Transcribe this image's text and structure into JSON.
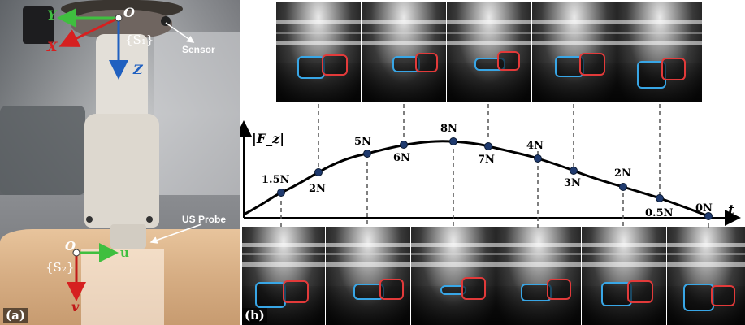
{
  "panel_a": {
    "tag": "(a)",
    "frame1": {
      "origin": "O",
      "name": "{S₁}",
      "x": "X",
      "y": "Y",
      "z": "Z"
    },
    "frame2": {
      "origin": "O",
      "name": "{S₂}",
      "u": "u",
      "v": "v"
    },
    "sensor_label": "Sensor",
    "probe_label": "US Probe"
  },
  "panel_b": {
    "tag": "(b)",
    "y_axis_label": "|F_z|",
    "x_axis_label": "t",
    "colors": {
      "artery_outline": "#e23a3a",
      "vein_outline": "#38a6e6",
      "curve": "#000000",
      "points": "#1f3a6e"
    },
    "force_points": [
      "1.5N",
      "2N",
      "5N",
      "6N",
      "8N",
      "7N",
      "4N",
      "3N",
      "2N",
      "0.5N",
      "0N"
    ],
    "top_images_count": 5,
    "bottom_images_count": 6
  }
}
